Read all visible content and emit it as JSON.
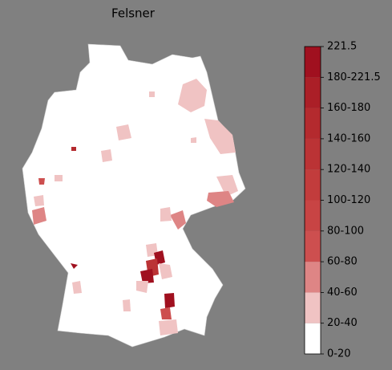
{
  "title": "Felsner",
  "colorbar": {
    "labels": [
      "0-20",
      "20-40",
      "40-60",
      "60-80",
      "80-100",
      "100-120",
      "120-140",
      "140-160",
      "160-180",
      "180-221.5",
      "221.5"
    ],
    "colors": [
      "#ffffff",
      "#f0c3c3",
      "#de8585",
      "#cd4f4f",
      "#c84444",
      "#c23c3c",
      "#bb3335",
      "#b42a2e",
      "#ab1f27",
      "#a0101f"
    ]
  }
}
